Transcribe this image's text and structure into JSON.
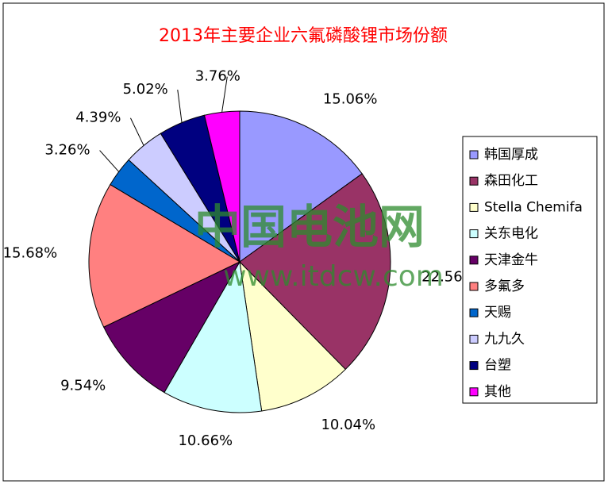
{
  "chart_data": {
    "type": "pie",
    "title": "2013年主要企业六氟磷酸锂市场份额",
    "categories": [
      "韩国厚成",
      "森田化工",
      "Stella Chemifa",
      "关东电化",
      "天津金牛",
      "多氟多",
      "天赐",
      "九九久",
      "台塑",
      "其他"
    ],
    "values": [
      15.06,
      22.56,
      10.04,
      10.66,
      9.54,
      15.68,
      3.26,
      4.39,
      5.02,
      3.76
    ],
    "value_labels": [
      "15.06%",
      "22.56%",
      "10.04%",
      "10.66%",
      "9.54%",
      "15.68%",
      "3.26%",
      "4.39%",
      "5.02%",
      "3.76%"
    ],
    "colors": [
      "#9999ff",
      "#993366",
      "#ffffcc",
      "#ccffff",
      "#660066",
      "#ff8080",
      "#0066cc",
      "#ccccff",
      "#000080",
      "#ff00ff"
    ],
    "legend": "right",
    "watermark": [
      "中国电池网",
      "www.itdcw.com"
    ]
  }
}
